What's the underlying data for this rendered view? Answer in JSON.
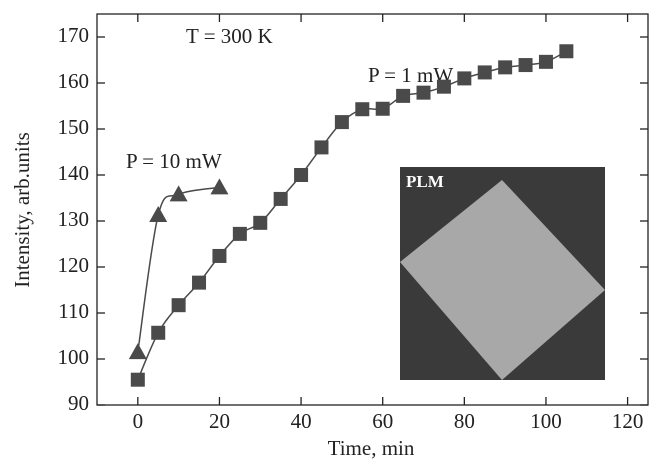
{
  "chart_data": {
    "type": "scatter",
    "x_label": "Time, min",
    "y_label": "Intensity, arb.units",
    "annotations": [
      "T = 300 K",
      "PLM"
    ],
    "xlim": [
      -10,
      125
    ],
    "ylim": [
      90,
      175
    ],
    "xticks": [
      0,
      20,
      40,
      60,
      80,
      100,
      120
    ],
    "yticks": [
      90,
      100,
      110,
      120,
      130,
      140,
      150,
      160,
      170
    ],
    "series": [
      {
        "name": "P = 1 mW",
        "color": "#4a4a4a",
        "marker": "square",
        "x": [
          0,
          5,
          10,
          15,
          20,
          25,
          30,
          35,
          40,
          45,
          50,
          55,
          60,
          65,
          70,
          75,
          80,
          85,
          90,
          95,
          100,
          105
        ],
        "values": [
          95.5,
          105.7,
          111.7,
          116.6,
          122.4,
          127.2,
          129.6,
          134.8,
          140,
          146,
          151.5,
          154.3,
          154.4,
          157.2,
          157.9,
          159.2,
          161,
          162.3,
          163.4,
          163.9,
          164.6,
          166.9
        ]
      },
      {
        "name": "P = 10 mW",
        "color": "#4a4a4a",
        "marker": "triangle",
        "x": [
          0,
          5,
          10,
          20
        ],
        "values": [
          101.5,
          131.3,
          135.8,
          137.3
        ]
      }
    ]
  }
}
